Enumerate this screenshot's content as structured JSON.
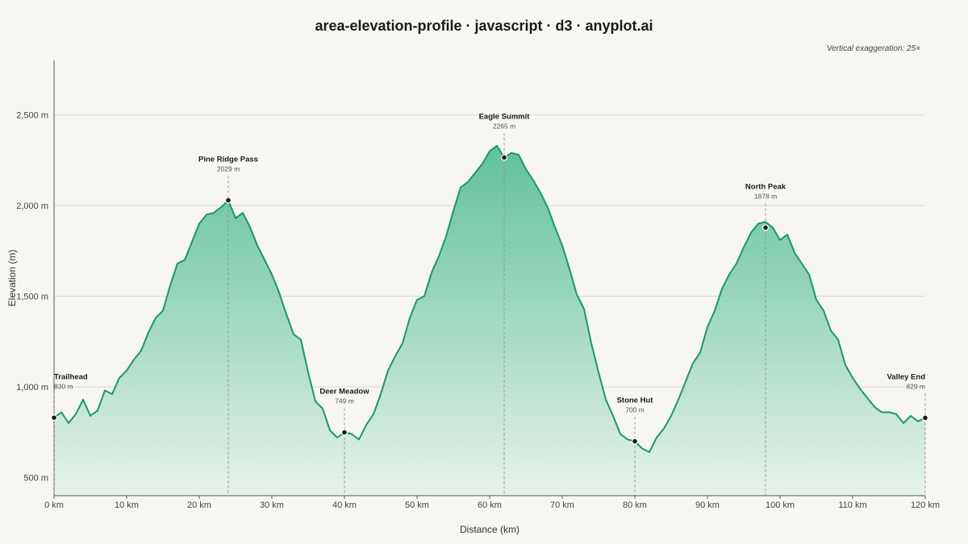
{
  "chart_data": {
    "type": "area",
    "title": "area-elevation-profile · javascript · d3 · anyplot.ai",
    "note": "Vertical exaggeration: 25×",
    "xlabel": "Distance (km)",
    "ylabel": "Elevation (m)",
    "xlim": [
      0,
      120
    ],
    "ylim": [
      400,
      2800
    ],
    "grid": true,
    "x_ticks": [
      0,
      10,
      20,
      30,
      40,
      50,
      60,
      70,
      80,
      90,
      100,
      110,
      120
    ],
    "x_tick_labels": [
      "0 km",
      "10 km",
      "20 km",
      "30 km",
      "40 km",
      "50 km",
      "60 km",
      "70 km",
      "80 km",
      "90 km",
      "100 km",
      "110 km",
      "120 km"
    ],
    "y_ticks": [
      500,
      1000,
      1500,
      2000,
      2500
    ],
    "y_tick_labels": [
      "500 m",
      "1,000 m",
      "1,500 m",
      "2,000 m",
      "2,500 m"
    ],
    "line_color": "#149a6f",
    "fill_color_top": "#46b88f",
    "fill_color_bottom": "#e6f2ea",
    "series": [
      {
        "x": [
          0,
          1,
          2,
          3,
          4,
          5,
          6,
          7,
          8,
          9,
          10,
          11,
          12,
          13,
          14,
          15,
          16,
          17,
          18,
          19,
          20,
          21,
          22,
          23,
          24,
          25,
          26,
          27,
          28,
          29,
          30,
          31,
          32,
          33,
          34,
          35,
          36,
          37,
          38,
          39,
          40,
          41,
          42,
          43,
          44,
          45,
          46,
          47,
          48,
          49,
          50,
          51,
          52,
          53,
          54,
          55,
          56,
          57,
          58,
          59,
          60,
          61,
          62,
          63,
          64,
          65,
          66,
          67,
          68,
          69,
          70,
          71,
          72,
          73,
          74,
          75,
          76,
          77,
          78,
          79,
          80,
          81,
          82,
          83,
          84,
          85,
          86,
          87,
          88,
          89,
          90,
          91,
          92,
          93,
          94,
          95,
          96,
          97,
          98,
          99,
          100,
          101,
          102,
          103,
          104,
          105,
          106,
          107,
          108,
          109,
          110,
          111,
          112,
          113,
          114,
          115,
          116,
          117,
          118,
          119,
          120
        ],
        "y": [
          830,
          860,
          800,
          850,
          930,
          840,
          870,
          980,
          960,
          1050,
          1090,
          1150,
          1200,
          1300,
          1380,
          1420,
          1560,
          1680,
          1700,
          1800,
          1900,
          1950,
          1960,
          1990,
          2029,
          1930,
          1960,
          1880,
          1780,
          1700,
          1620,
          1520,
          1400,
          1290,
          1260,
          1080,
          920,
          880,
          760,
          720,
          749,
          740,
          710,
          790,
          850,
          960,
          1090,
          1170,
          1240,
          1380,
          1480,
          1500,
          1630,
          1720,
          1830,
          1970,
          2100,
          2130,
          2180,
          2230,
          2300,
          2330,
          2265,
          2290,
          2280,
          2200,
          2140,
          2070,
          1990,
          1880,
          1780,
          1650,
          1510,
          1430,
          1240,
          1080,
          930,
          840,
          740,
          710,
          700,
          660,
          640,
          720,
          770,
          840,
          930,
          1030,
          1130,
          1190,
          1330,
          1420,
          1540,
          1620,
          1680,
          1770,
          1850,
          1900,
          1910,
          1878,
          1810,
          1840,
          1740,
          1680,
          1620,
          1480,
          1420,
          1310,
          1260,
          1120,
          1050,
          990,
          940,
          890,
          860,
          860,
          850,
          800,
          840,
          810,
          829
        ]
      }
    ],
    "landmarks": [
      {
        "name": "Trailhead",
        "x": 0,
        "y": 830,
        "label": "830 m"
      },
      {
        "name": "Pine Ridge Pass",
        "x": 24,
        "y": 2029,
        "label": "2029 m"
      },
      {
        "name": "Deer Meadow",
        "x": 40,
        "y": 749,
        "label": "749 m"
      },
      {
        "name": "Eagle Summit",
        "x": 62,
        "y": 2265,
        "label": "2265 m"
      },
      {
        "name": "Stone Hut",
        "x": 80,
        "y": 700,
        "label": "700 m"
      },
      {
        "name": "North Peak",
        "x": 98,
        "y": 1878,
        "label": "1878 m"
      },
      {
        "name": "Valley End",
        "x": 120,
        "y": 829,
        "label": "829 m"
      }
    ]
  }
}
